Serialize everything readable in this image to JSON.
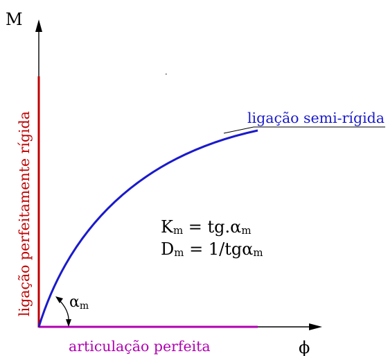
{
  "axes": {
    "y_label": "M",
    "x_label": "ϕ"
  },
  "labels": {
    "rigid": "ligação perfeitamente rígida",
    "semi_rigid": "ligação semi-rígida",
    "pinned": "articulação perfeita",
    "angle": "α",
    "angle_sub": "m"
  },
  "formulas": {
    "line1": {
      "var": "K",
      "sub": "m",
      "rhs": " = tg.α",
      "rhs_sub": "m"
    },
    "line2": {
      "var": "D",
      "sub": "m",
      "rhs": " = 1/tgα",
      "rhs_sub": "m"
    }
  },
  "colors": {
    "axis": "#000000",
    "rigid": "#c00000",
    "semi_rigid": "#1a1acc",
    "pinned": "#b000b0",
    "text": "#000000"
  }
}
